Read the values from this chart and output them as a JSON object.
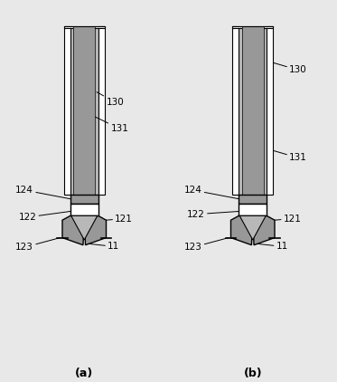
{
  "bg_color": "#e8e8e8",
  "white": "#ffffff",
  "light_gray": "#b8b8b8",
  "mid_gray": "#989898",
  "dark_gray": "#686868",
  "black": "#000000",
  "fig_width": 3.73,
  "fig_height": 4.22,
  "dpi": 100,
  "label_a": "(a)",
  "label_b": "(b)"
}
